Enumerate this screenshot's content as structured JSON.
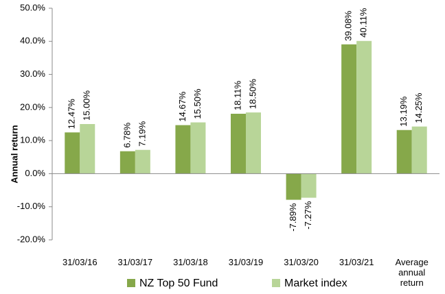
{
  "chart_data": {
    "type": "bar",
    "y_label": "Annual return",
    "categories": [
      "31/03/16",
      "31/03/17",
      "31/03/18",
      "31/03/19",
      "31/03/20",
      "31/03/21",
      "Average annual return"
    ],
    "series": [
      {
        "name": "NZ Top 50 Fund",
        "color": "#86a84a",
        "values": [
          12.47,
          6.78,
          14.67,
          18.11,
          -7.89,
          39.08,
          13.19
        ],
        "value_labels": [
          "12.47%",
          "6.78%",
          "14.67%",
          "18.11%",
          "-7.89%",
          "39.08%",
          "13.19%"
        ]
      },
      {
        "name": "Market index",
        "color": "#b8d598",
        "values": [
          15.0,
          7.19,
          15.5,
          18.5,
          -7.27,
          40.11,
          14.25
        ],
        "value_labels": [
          "15.00%",
          "7.19%",
          "15.50%",
          "18.50%",
          "-7.27%",
          "40.11%",
          "14.25%"
        ]
      }
    ],
    "ylim": [
      -20,
      50
    ],
    "yticks": [
      {
        "value": -20,
        "label": "-20.0%"
      },
      {
        "value": -10,
        "label": "-10.0%"
      },
      {
        "value": 0,
        "label": "0.0%"
      },
      {
        "value": 10,
        "label": "10.0%"
      },
      {
        "value": 20,
        "label": "20.0%"
      },
      {
        "value": 30,
        "label": "30.0%"
      },
      {
        "value": 40,
        "label": "40.0%"
      },
      {
        "value": 50,
        "label": "50.0%"
      }
    ],
    "grid": false,
    "legend": "bottom"
  }
}
